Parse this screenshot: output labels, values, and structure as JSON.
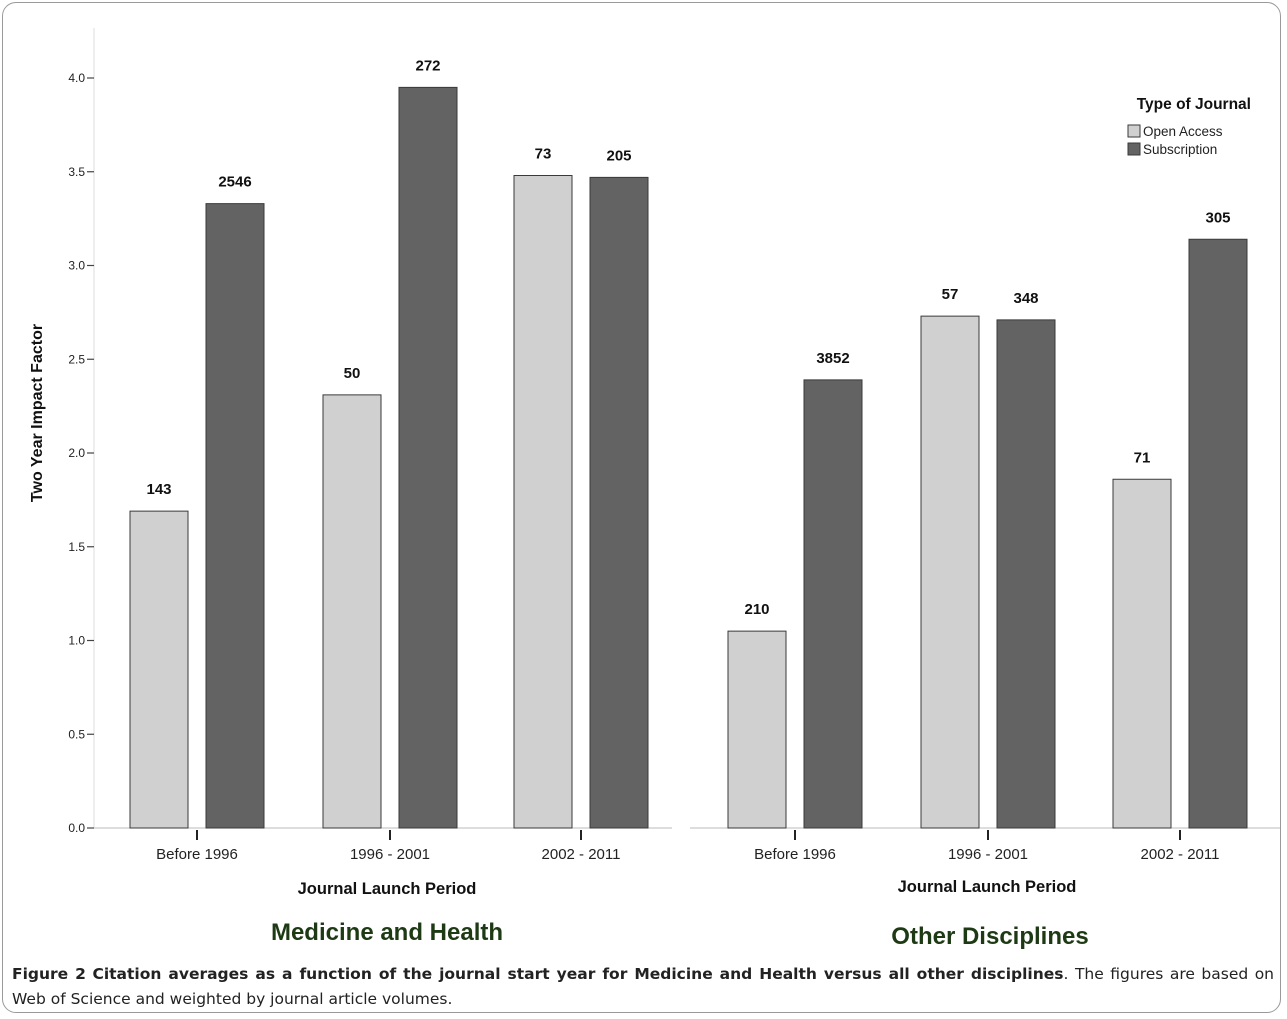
{
  "figure": {
    "caption_label": "Figure 2",
    "caption_title": "Citation averages as a function of the journal start year for Medicine and Health versus all other disciplines",
    "caption_text": ". The figures are based on Web of Science and weighted by journal article volumes."
  },
  "colors": {
    "open_access": "#d0d0d0",
    "subscription": "#636363",
    "panel_title": "#1e3a14"
  },
  "legend": {
    "title": "Type of Journal",
    "placement": "top-right",
    "items": [
      "Open Access",
      "Subscription"
    ]
  },
  "chart_data": [
    {
      "type": "bar",
      "title": "Medicine and Health",
      "xlabel": "Journal Launch Period",
      "ylabel": "Two Year Impact Factor",
      "ylim": [
        0,
        4.0
      ],
      "yticks": [
        "0.0",
        "0.5",
        "1.0",
        "1.5",
        "2.0",
        "2.5",
        "3.0",
        "3.5",
        "4.0"
      ],
      "categories": [
        "Before 1996",
        "1996 - 2001",
        "2002 - 2011"
      ],
      "series": [
        {
          "name": "Open Access",
          "values": [
            1.69,
            2.31,
            3.48
          ],
          "labels": [
            "143",
            "50",
            "73"
          ]
        },
        {
          "name": "Subscription",
          "values": [
            3.33,
            3.95,
            3.47
          ],
          "labels": [
            "2546",
            "272",
            "205"
          ]
        }
      ]
    },
    {
      "type": "bar",
      "title": "Other Disciplines",
      "xlabel": "Journal Launch Period",
      "ylabel": "",
      "ylim": [
        0,
        4.0
      ],
      "categories": [
        "Before 1996",
        "1996 - 2001",
        "2002 - 2011"
      ],
      "series": [
        {
          "name": "Open Access",
          "values": [
            1.05,
            2.73,
            1.86
          ],
          "labels": [
            "210",
            "57",
            "71"
          ]
        },
        {
          "name": "Subscription",
          "values": [
            2.39,
            2.71,
            3.14
          ],
          "labels": [
            "3852",
            "348",
            "305"
          ]
        }
      ]
    }
  ]
}
